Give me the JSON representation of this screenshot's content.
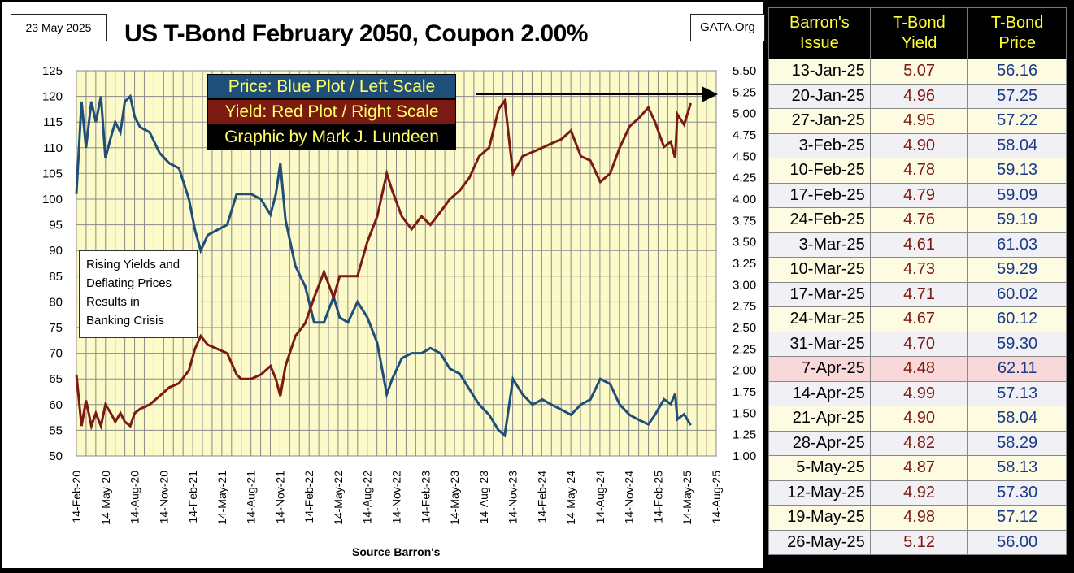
{
  "header": {
    "date": "23 May 2025",
    "site": "GATA.Org",
    "title": "US T-Bond February 2050, Coupon 2.00%"
  },
  "legend": {
    "price": "Price:  Blue Plot / Left Scale",
    "yield": "Yield:  Red Plot / Right Scale",
    "credit": "Graphic by Mark J. Lundeen"
  },
  "annotation": {
    "lines": [
      "Rising Yields and",
      "Deflating Prices",
      "Results in",
      "Banking Crisis"
    ]
  },
  "source": "Source Barron's",
  "colors": {
    "price_line": "#1f4e79",
    "yield_line": "#7b1a12",
    "plot_bg": "#fcfac8",
    "grid": "#8a8a8a"
  },
  "chart_data": {
    "type": "line",
    "title": "US T-Bond February 2050, Coupon 2.00%",
    "xlabel": "Source Barron's",
    "x_ticks": [
      "14-Feb-20",
      "14-May-20",
      "14-Aug-20",
      "14-Nov-20",
      "14-Feb-21",
      "14-May-21",
      "14-Aug-21",
      "14-Nov-21",
      "14-Feb-22",
      "14-May-22",
      "14-Aug-22",
      "14-Nov-22",
      "14-Feb-23",
      "14-May-23",
      "14-Aug-23",
      "14-Nov-23",
      "14-Feb-24",
      "14-May-24",
      "14-Aug-24",
      "14-Nov-24",
      "14-Feb-25",
      "14-May-25",
      "14-Aug-25"
    ],
    "y_left": {
      "label": "Price",
      "min": 50,
      "max": 125,
      "ticks": [
        50,
        55,
        60,
        65,
        70,
        75,
        80,
        85,
        90,
        95,
        100,
        105,
        110,
        115,
        120,
        125
      ]
    },
    "y_right": {
      "label": "Yield",
      "min": 1.0,
      "max": 5.5,
      "ticks": [
        "1.00",
        "1.25",
        "1.50",
        "1.75",
        "2.00",
        "2.25",
        "2.50",
        "2.75",
        "3.00",
        "3.25",
        "3.50",
        "3.75",
        "4.00",
        "4.25",
        "4.50",
        "4.75",
        "5.00",
        "5.25",
        "5.50"
      ]
    },
    "grid": true,
    "series": [
      {
        "name": "Price",
        "axis": "left",
        "x": [
          "2020-02-14",
          "2020-03-01",
          "2020-03-15",
          "2020-04-01",
          "2020-04-15",
          "2020-05-01",
          "2020-05-15",
          "2020-06-01",
          "2020-06-15",
          "2020-07-01",
          "2020-07-15",
          "2020-08-01",
          "2020-08-15",
          "2020-09-01",
          "2020-10-01",
          "2020-11-01",
          "2020-12-01",
          "2021-01-01",
          "2021-02-01",
          "2021-02-20",
          "2021-03-10",
          "2021-04-01",
          "2021-05-01",
          "2021-06-01",
          "2021-07-01",
          "2021-07-15",
          "2021-08-15",
          "2021-09-15",
          "2021-10-15",
          "2021-11-01",
          "2021-11-15",
          "2021-12-01",
          "2022-01-01",
          "2022-02-01",
          "2022-03-01",
          "2022-04-01",
          "2022-05-01",
          "2022-05-20",
          "2022-06-15",
          "2022-07-15",
          "2022-08-15",
          "2022-09-15",
          "2022-10-15",
          "2022-11-01",
          "2022-12-01",
          "2023-01-01",
          "2023-02-01",
          "2023-03-01",
          "2023-04-01",
          "2023-05-01",
          "2023-06-01",
          "2023-07-01",
          "2023-08-01",
          "2023-09-01",
          "2023-10-01",
          "2023-10-20",
          "2023-11-15",
          "2023-12-15",
          "2024-01-15",
          "2024-02-15",
          "2024-03-15",
          "2024-04-15",
          "2024-05-15",
          "2024-06-15",
          "2024-07-15",
          "2024-08-15",
          "2024-09-15",
          "2024-10-15",
          "2024-11-15",
          "2024-12-15",
          "2025-01-13",
          "2025-02-03",
          "2025-03-03",
          "2025-03-24",
          "2025-04-07",
          "2025-04-14",
          "2025-05-05",
          "2025-05-26"
        ],
        "values": [
          101,
          119,
          110,
          119,
          115,
          120,
          108,
          112,
          115,
          113,
          119,
          120,
          116,
          114,
          113,
          109,
          107,
          106,
          100,
          94,
          90,
          93,
          94,
          95,
          101,
          101,
          101,
          100,
          97,
          101,
          107,
          96,
          87,
          83,
          76,
          76,
          81,
          77,
          76,
          80,
          77,
          72,
          62,
          65,
          69,
          70,
          70,
          71,
          70,
          67,
          66,
          63,
          60,
          58,
          55,
          54,
          65,
          62,
          60,
          61,
          60,
          59,
          58,
          60,
          61,
          65,
          64,
          60,
          58,
          57,
          56.16,
          58.04,
          61.03,
          60.12,
          62.11,
          57.13,
          58.13,
          56.0
        ]
      },
      {
        "name": "Yield",
        "axis": "right",
        "x": [
          "2020-02-14",
          "2020-03-01",
          "2020-03-15",
          "2020-04-01",
          "2020-04-15",
          "2020-05-01",
          "2020-05-15",
          "2020-06-01",
          "2020-06-15",
          "2020-07-01",
          "2020-07-15",
          "2020-08-01",
          "2020-08-15",
          "2020-09-01",
          "2020-10-01",
          "2020-11-01",
          "2020-12-01",
          "2021-01-01",
          "2021-02-01",
          "2021-02-20",
          "2021-03-10",
          "2021-04-01",
          "2021-05-01",
          "2021-06-01",
          "2021-07-01",
          "2021-07-15",
          "2021-08-15",
          "2021-09-15",
          "2021-10-15",
          "2021-11-01",
          "2021-11-15",
          "2021-12-01",
          "2022-01-01",
          "2022-02-01",
          "2022-03-01",
          "2022-04-01",
          "2022-05-01",
          "2022-05-20",
          "2022-06-15",
          "2022-07-15",
          "2022-08-15",
          "2022-09-15",
          "2022-10-15",
          "2022-11-01",
          "2022-12-01",
          "2023-01-01",
          "2023-02-01",
          "2023-03-01",
          "2023-04-01",
          "2023-05-01",
          "2023-06-01",
          "2023-07-01",
          "2023-08-01",
          "2023-09-01",
          "2023-10-01",
          "2023-10-20",
          "2023-11-15",
          "2023-12-15",
          "2024-01-15",
          "2024-02-15",
          "2024-03-15",
          "2024-04-15",
          "2024-05-15",
          "2024-06-15",
          "2024-07-15",
          "2024-08-15",
          "2024-09-15",
          "2024-10-15",
          "2024-11-15",
          "2024-12-15",
          "2025-01-13",
          "2025-02-03",
          "2025-03-03",
          "2025-03-24",
          "2025-04-07",
          "2025-04-14",
          "2025-05-05",
          "2025-05-26"
        ],
        "values": [
          1.95,
          1.35,
          1.65,
          1.35,
          1.5,
          1.35,
          1.6,
          1.5,
          1.4,
          1.5,
          1.4,
          1.35,
          1.5,
          1.55,
          1.6,
          1.7,
          1.8,
          1.85,
          2.0,
          2.25,
          2.4,
          2.3,
          2.25,
          2.2,
          1.95,
          1.9,
          1.9,
          1.95,
          2.05,
          1.9,
          1.7,
          2.05,
          2.4,
          2.55,
          2.85,
          3.15,
          2.85,
          3.1,
          3.1,
          3.1,
          3.5,
          3.8,
          4.3,
          4.1,
          3.8,
          3.65,
          3.8,
          3.7,
          3.85,
          4.0,
          4.1,
          4.25,
          4.5,
          4.6,
          5.05,
          5.15,
          4.3,
          4.5,
          4.55,
          4.6,
          4.65,
          4.7,
          4.8,
          4.5,
          4.45,
          4.2,
          4.3,
          4.6,
          4.85,
          4.95,
          5.07,
          4.9,
          4.61,
          4.67,
          4.48,
          4.99,
          4.87,
          5.12
        ]
      }
    ]
  },
  "table": {
    "headers": [
      {
        "line1": "Barron's",
        "line2": "Issue"
      },
      {
        "line1": "T-Bond",
        "line2": "Yield"
      },
      {
        "line1": "T-Bond",
        "line2": "Price"
      }
    ],
    "highlight_color": "#f8d8d8",
    "rows": [
      {
        "date": "13-Jan-25",
        "yield": "5.07",
        "price": "56.16"
      },
      {
        "date": "20-Jan-25",
        "yield": "4.96",
        "price": "57.25"
      },
      {
        "date": "27-Jan-25",
        "yield": "4.95",
        "price": "57.22"
      },
      {
        "date": "3-Feb-25",
        "yield": "4.90",
        "price": "58.04"
      },
      {
        "date": "10-Feb-25",
        "yield": "4.78",
        "price": "59.13"
      },
      {
        "date": "17-Feb-25",
        "yield": "4.79",
        "price": "59.09"
      },
      {
        "date": "24-Feb-25",
        "yield": "4.76",
        "price": "59.19"
      },
      {
        "date": "3-Mar-25",
        "yield": "4.61",
        "price": "61.03"
      },
      {
        "date": "10-Mar-25",
        "yield": "4.73",
        "price": "59.29"
      },
      {
        "date": "17-Mar-25",
        "yield": "4.71",
        "price": "60.02"
      },
      {
        "date": "24-Mar-25",
        "yield": "4.67",
        "price": "60.12"
      },
      {
        "date": "31-Mar-25",
        "yield": "4.70",
        "price": "59.30"
      },
      {
        "date": "7-Apr-25",
        "yield": "4.48",
        "price": "62.11",
        "highlight": true
      },
      {
        "date": "14-Apr-25",
        "yield": "4.99",
        "price": "57.13"
      },
      {
        "date": "21-Apr-25",
        "yield": "4.90",
        "price": "58.04"
      },
      {
        "date": "28-Apr-25",
        "yield": "4.82",
        "price": "58.29"
      },
      {
        "date": "5-May-25",
        "yield": "4.87",
        "price": "58.13"
      },
      {
        "date": "12-May-25",
        "yield": "4.92",
        "price": "57.30"
      },
      {
        "date": "19-May-25",
        "yield": "4.98",
        "price": "57.12"
      },
      {
        "date": "26-May-25",
        "yield": "5.12",
        "price": "56.00"
      }
    ]
  }
}
